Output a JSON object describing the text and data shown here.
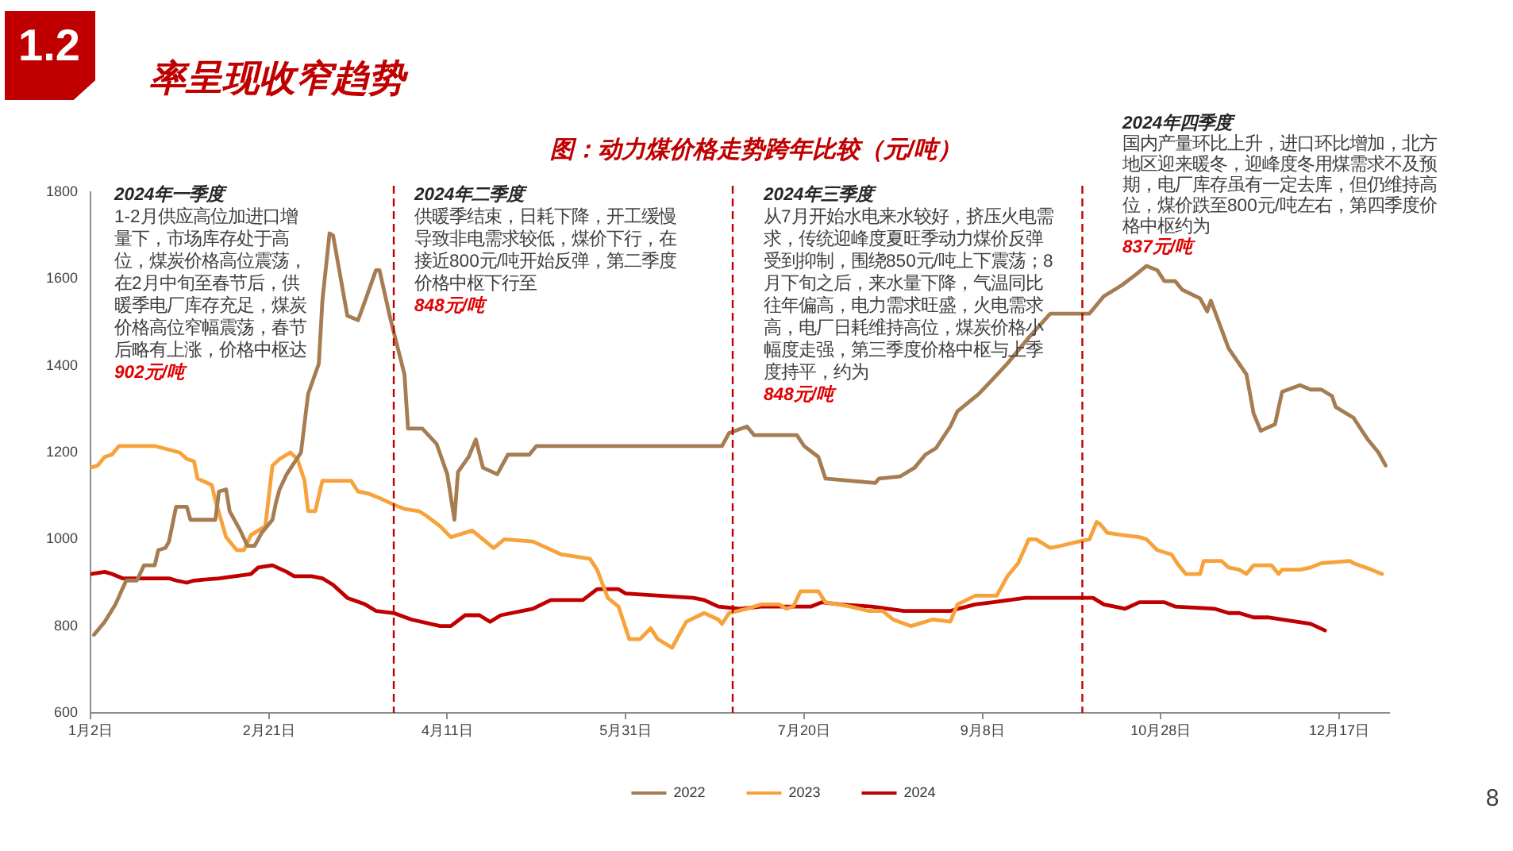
{
  "chart_data": {
    "type": "line",
    "title": "图：动力煤价格走势跨年比较（元/吨）",
    "series": [
      {
        "name": "2022",
        "color": "#a67c52",
        "x": [
          "--01-03",
          "--01-06",
          "--01-09",
          "--01-12",
          "--01-15",
          "--01-17",
          "--01-20",
          "--01-21",
          "--01-23",
          "--01-24",
          "--01-26",
          "--01-29",
          "--01-30",
          "--02-06",
          "--02-07",
          "--02-09",
          "--02-10",
          "--02-13",
          "--02-15",
          "--02-17",
          "--02-19",
          "--02-22",
          "--02-23",
          "--02-24",
          "--02-26",
          "--03-01",
          "--03-03",
          "--03-06",
          "--03-07",
          "--03-09",
          "--03-10",
          "--03-14",
          "--03-17",
          "--03-19",
          "--03-22",
          "--03-23",
          "--03-26",
          "--03-30",
          "--03-31",
          "--04-04",
          "--04-08",
          "--04-11",
          "--04-13",
          "--04-14",
          "--04-17",
          "--04-19",
          "--04-21",
          "--04-25",
          "--04-28",
          "--05-04",
          "--05-06",
          "--06-27",
          "--06-29",
          "--07-04",
          "--07-06",
          "--07-18",
          "--07-20",
          "--07-24",
          "--07-26",
          "--08-02",
          "--08-09",
          "--08-10",
          "--08-16",
          "--08-20",
          "--08-23",
          "--08-26",
          "--08-30",
          "--09-01",
          "--09-07",
          "--09-11",
          "--09-15",
          "--09-21",
          "--09-27",
          "--10-08",
          "--10-12",
          "--10-17",
          "--10-21",
          "--10-24",
          "--10-27",
          "--10-29",
          "--11-01",
          "--11-03",
          "--11-08",
          "--11-10",
          "--11-11",
          "--11-16",
          "--11-21",
          "--11-23",
          "--11-25",
          "--11-29",
          "--12-01",
          "--12-06",
          "--12-09",
          "--12-12",
          "--12-15",
          "--12-16",
          "--12-21",
          "--12-25",
          "--12-28",
          "--12-30"
        ],
        "values": [
          780,
          810,
          850,
          905,
          905,
          940,
          940,
          975,
          980,
          995,
          1075,
          1075,
          1045,
          1045,
          1110,
          1115,
          1065,
          1020,
          985,
          985,
          1015,
          1045,
          1085,
          1115,
          1150,
          1200,
          1335,
          1405,
          1550,
          1705,
          1700,
          1515,
          1505,
          1550,
          1620,
          1620,
          1510,
          1380,
          1255,
          1255,
          1220,
          1150,
          1045,
          1155,
          1190,
          1230,
          1165,
          1150,
          1195,
          1195,
          1215,
          1215,
          1245,
          1260,
          1240,
          1240,
          1215,
          1190,
          1140,
          1135,
          1130,
          1140,
          1145,
          1165,
          1195,
          1210,
          1260,
          1295,
          1335,
          1370,
          1405,
          1465,
          1520,
          1520,
          1560,
          1585,
          1610,
          1630,
          1620,
          1595,
          1595,
          1575,
          1555,
          1525,
          1550,
          1440,
          1380,
          1290,
          1250,
          1265,
          1340,
          1355,
          1345,
          1345,
          1330,
          1305,
          1280,
          1230,
          1200,
          1170
        ]
      },
      {
        "name": "2023",
        "color": "#f7a23b",
        "x": [
          "--01-02",
          "--01-04",
          "--01-06",
          "--01-08",
          "--01-10",
          "--01-20",
          "--01-27",
          "--01-29",
          "--01-31",
          "--02-01",
          "--02-05",
          "--02-06",
          "--02-09",
          "--02-12",
          "--02-14",
          "--02-16",
          "--02-19",
          "--02-20",
          "--02-22",
          "--02-24",
          "--02-27",
          "--02-29",
          "--03-02",
          "--03-03",
          "--03-05",
          "--03-07",
          "--03-15",
          "--03-17",
          "--03-20",
          "--03-23",
          "--03-27",
          "--03-30",
          "--04-03",
          "--04-05",
          "--04-09",
          "--04-12",
          "--04-18",
          "--04-24",
          "--04-27",
          "--05-05",
          "--05-13",
          "--05-21",
          "--05-23",
          "--05-26",
          "--05-29",
          "--06-01",
          "--06-04",
          "--06-07",
          "--06-09",
          "--06-13",
          "--06-17",
          "--06-22",
          "--06-26",
          "--06-27",
          "--06-29",
          "--07-04",
          "--07-08",
          "--07-13",
          "--07-15",
          "--07-17",
          "--07-19",
          "--07-24",
          "--07-26",
          "--08-02",
          "--08-07",
          "--08-11",
          "--08-14",
          "--08-19",
          "--08-25",
          "--08-30",
          "--09-01",
          "--09-06",
          "--09-12",
          "--09-15",
          "--09-18",
          "--09-21",
          "--09-23",
          "--09-27",
          "--09-30",
          "--10-05",
          "--10-08",
          "--10-10",
          "--10-11",
          "--10-13",
          "--10-17",
          "--10-22",
          "--10-24",
          "--10-27",
          "--10-31",
          "--11-02",
          "--11-04",
          "--11-08",
          "--11-09",
          "--11-14",
          "--11-16",
          "--11-19",
          "--11-21",
          "--11-23",
          "--11-28",
          "--11-30",
          "--12-01",
          "--12-06",
          "--12-09",
          "--12-12",
          "--12-20",
          "--12-21",
          "--12-26",
          "--12-29"
        ],
        "values": [
          1165,
          1170,
          1190,
          1195,
          1215,
          1215,
          1200,
          1185,
          1180,
          1140,
          1125,
          1090,
          1005,
          975,
          975,
          1010,
          1025,
          1030,
          1170,
          1185,
          1200,
          1185,
          1135,
          1065,
          1065,
          1135,
          1135,
          1110,
          1105,
          1095,
          1080,
          1070,
          1065,
          1055,
          1030,
          1005,
          1020,
          980,
          1000,
          995,
          965,
          955,
          930,
          865,
          845,
          770,
          770,
          795,
          770,
          750,
          810,
          830,
          815,
          805,
          830,
          840,
          850,
          850,
          840,
          845,
          880,
          880,
          855,
          845,
          835,
          835,
          815,
          800,
          815,
          810,
          850,
          870,
          870,
          915,
          945,
          1000,
          1000,
          980,
          985,
          995,
          1000,
          1040,
          1035,
          1015,
          1010,
          1005,
          1000,
          975,
          965,
          940,
          920,
          920,
          950,
          950,
          935,
          930,
          920,
          940,
          940,
          920,
          930,
          930,
          935,
          945,
          950,
          945,
          930,
          920
        ]
      },
      {
        "name": "2024",
        "color": "#c00000",
        "x": [
          "--01-02",
          "--01-06",
          "--01-08",
          "--01-11",
          "--01-24",
          "--01-26",
          "--01-29",
          "--01-31",
          "--02-07",
          "--02-16",
          "--02-18",
          "--02-22",
          "--02-26",
          "--02-28",
          "--03-04",
          "--03-07",
          "--03-10",
          "--03-14",
          "--03-19",
          "--03-22",
          "--03-27",
          "--04-01",
          "--04-09",
          "--04-12",
          "--04-16",
          "--04-20",
          "--04-23",
          "--04-26",
          "--05-05",
          "--05-10",
          "--05-19",
          "--05-23",
          "--05-29",
          "--05-31",
          "--06-19",
          "--06-22",
          "--06-26",
          "--07-02",
          "--07-08",
          "--07-15",
          "--07-22",
          "--07-25",
          "--07-30",
          "--08-08",
          "--08-17",
          "--08-30",
          "--09-06",
          "--09-11",
          "--09-20",
          "--10-09",
          "--10-12",
          "--10-18",
          "--10-22",
          "--10-29",
          "--11-01",
          "--11-12",
          "--11-16",
          "--11-19",
          "--11-23",
          "--11-27",
          "--12-05",
          "--12-09",
          "--12-13"
        ],
        "values": [
          920,
          925,
          920,
          910,
          910,
          905,
          900,
          905,
          910,
          920,
          935,
          940,
          925,
          915,
          915,
          910,
          895,
          865,
          850,
          835,
          830,
          815,
          800,
          800,
          825,
          825,
          810,
          825,
          840,
          860,
          860,
          885,
          885,
          875,
          865,
          860,
          845,
          840,
          845,
          845,
          845,
          855,
          850,
          845,
          835,
          835,
          850,
          855,
          865,
          865,
          850,
          840,
          855,
          855,
          845,
          840,
          830,
          830,
          820,
          820,
          810,
          805,
          790
        ]
      }
    ],
    "xlim": [
      "--01-02",
      "--12-31"
    ],
    "xticks": [
      {
        "value": "--01-02",
        "label": "1月2日"
      },
      {
        "value": "--02-21",
        "label": "2月21日"
      },
      {
        "value": "--04-11",
        "label": "4月11日"
      },
      {
        "value": "--05-31",
        "label": "5月31日"
      },
      {
        "value": "--07-20",
        "label": "7月20日"
      },
      {
        "value": "--09-08",
        "label": "9月8日"
      },
      {
        "value": "--10-28",
        "label": "10月28日"
      },
      {
        "value": "--12-17",
        "label": "12月17日"
      }
    ],
    "ylim": [
      600,
      1800
    ],
    "yticks": [
      600,
      800,
      1000,
      1200,
      1400,
      1600,
      1800
    ],
    "legend": "bottom",
    "ref_lines": [
      {
        "axis": "x",
        "value": "--03-27",
        "color": "#c00000",
        "line_style": "dashed"
      },
      {
        "axis": "x",
        "value": "--06-30",
        "color": "#c00000",
        "line_style": "dashed"
      },
      {
        "axis": "x",
        "value": "--10-06",
        "color": "#c00000",
        "line_style": "dashed"
      }
    ],
    "annotations": [
      "1.2",
      "率呈现收窄趋势",
      "2024年一季度",
      "1-2月供应高位加进口增量下，市场库存处于高位，煤炭价格高位震荡，在2月中旬至春节后，供暖季电厂库存充足，煤炭价格高位窄幅震荡，春节后略有上涨，价格中枢达",
      "902元/吨",
      "2024年二季度",
      "供暖季结束，日耗下降，开工缓慢导致非电需求较低，煤价下行，在接近800元/吨开始反弹，第二季度价格中枢下行至",
      "848元/吨",
      "2024年三季度",
      "从7月开始水电来水较好，挤压火电需求，传统迎峰度夏旺季动力煤价反弹受到抑制，围绕850元/吨上下震荡；8月下旬之后，来水量下降，气温同比往年偏高，电力需求旺盛，火电需求高，电厂日耗维持高位，煤炭价格小幅度走强，第三季度价格中枢与上季度持平，约为",
      "848元/吨",
      "2024年四季度",
      "国内产量环比上升，进口环比增加，北方地区迎来暖冬，迎峰度冬用煤需求不及预期，电厂库存虽有一定去库，但仍维持高位，煤价跌至800元/吨左右，第四季度价格中枢约为",
      "837元/吨",
      "8"
    ]
  }
}
